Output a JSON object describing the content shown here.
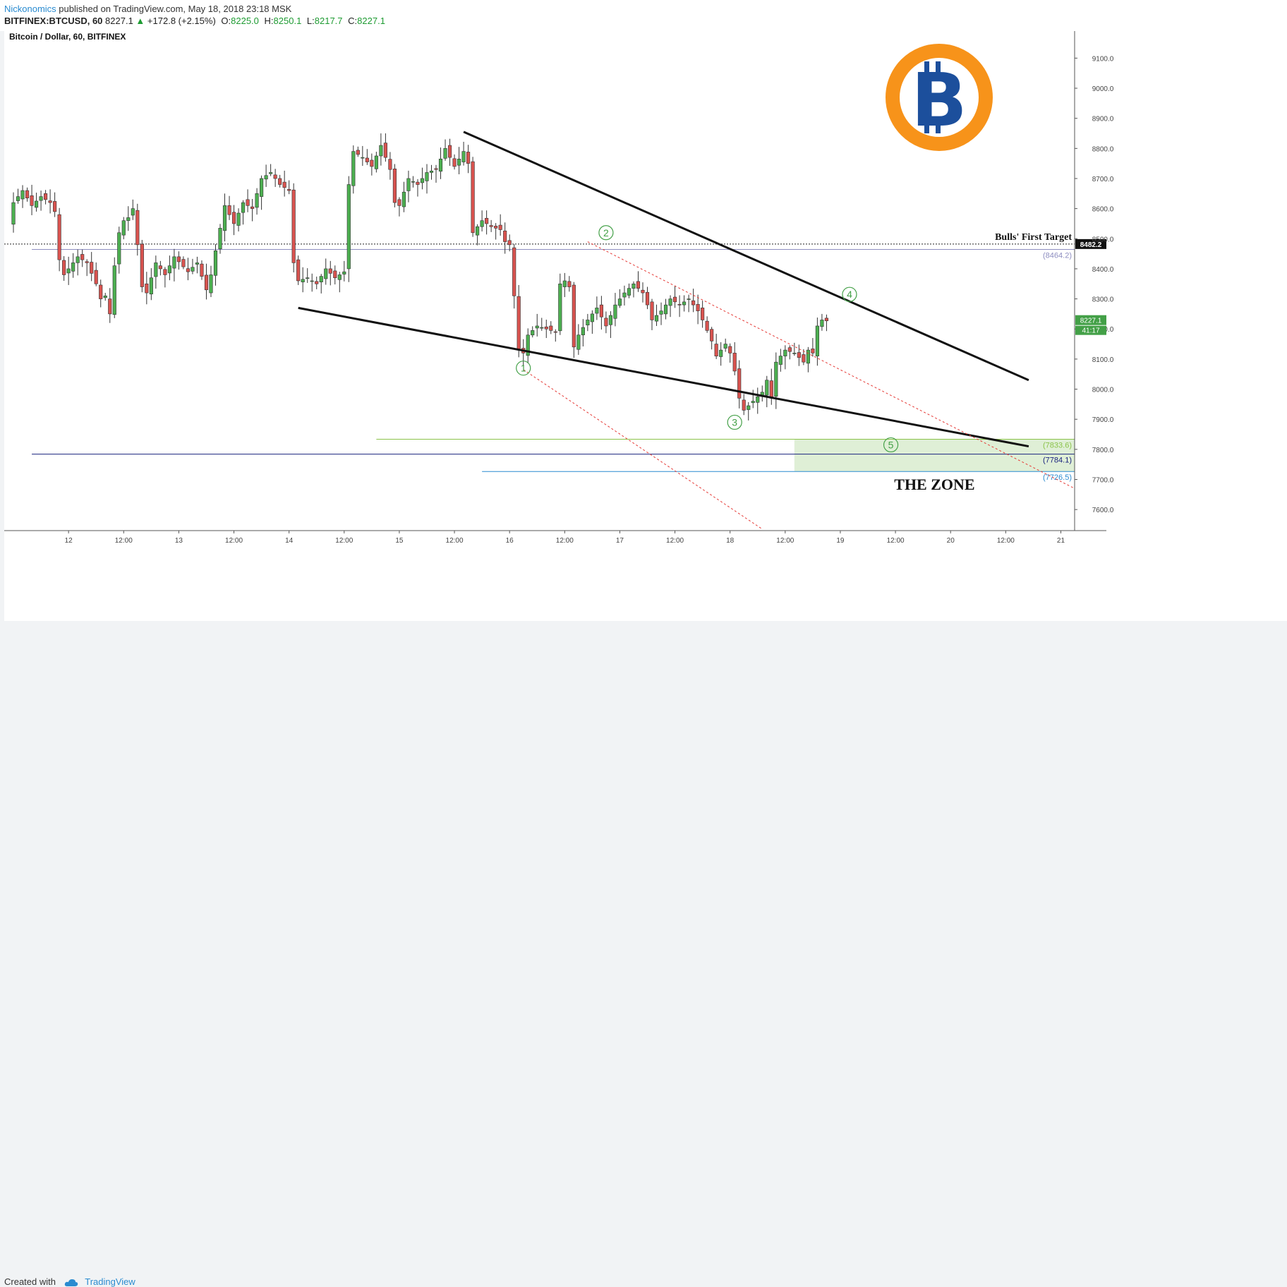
{
  "header": {
    "author": "Nickonomics",
    "published": " published on TradingView.com, May 18, 2018 23:18 MSK",
    "symbol": "BITFINEX:BTCUSD, 60",
    "last": "8227.1",
    "change": "+172.8 (+2.15%)",
    "o_label": "O:",
    "o_val": "8225.0",
    "h_label": "H:",
    "h_val": "8250.1",
    "l_label": "L:",
    "l_val": "8217.7",
    "c_label": "C:",
    "c_val": "8227.1"
  },
  "footer": {
    "created": "Created with",
    "brand": "TradingView"
  },
  "colors": {
    "up": "#4caf50",
    "down": "#d9534f",
    "accent": "#2a8bd0",
    "bitcoin_orange": "#f7931a",
    "bitcoin_blue": "#1c4f9c",
    "zone": "#d9eccf"
  },
  "chart_data": {
    "type": "candlestick",
    "title": "Bitcoin / Dollar, 60, BITFINEX",
    "ylim": [
      7530,
      9190
    ],
    "y_ticks": [
      "9100.0",
      "9000.0",
      "8900.0",
      "8800.0",
      "8700.0",
      "8600.0",
      "8500.0",
      "8400.0",
      "8300.0",
      "8200.0",
      "8100.0",
      "8000.0",
      "7900.0",
      "7800.0",
      "7700.0",
      "7600.0"
    ],
    "y_tick_values": [
      9100,
      9000,
      8900,
      8800,
      8700,
      8600,
      8500,
      8400,
      8300,
      8200,
      8100,
      8000,
      7900,
      7800,
      7700,
      7600
    ],
    "x_range_hours": [
      -14,
      219
    ],
    "x_ticks": [
      {
        "label": "12",
        "h": 0
      },
      {
        "label": "12:00",
        "h": 12
      },
      {
        "label": "13",
        "h": 24
      },
      {
        "label": "12:00",
        "h": 36
      },
      {
        "label": "14",
        "h": 48
      },
      {
        "label": "12:00",
        "h": 60
      },
      {
        "label": "15",
        "h": 72
      },
      {
        "label": "12:00",
        "h": 84
      },
      {
        "label": "16",
        "h": 96
      },
      {
        "label": "12:00",
        "h": 108
      },
      {
        "label": "17",
        "h": 120
      },
      {
        "label": "12:00",
        "h": 132
      },
      {
        "label": "18",
        "h": 144
      },
      {
        "label": "12:00",
        "h": 156
      },
      {
        "label": "19",
        "h": 168
      },
      {
        "label": "12:00",
        "h": 180
      },
      {
        "label": "20",
        "h": 192
      },
      {
        "label": "12:00",
        "h": 204
      },
      {
        "label": "21",
        "h": 216
      }
    ],
    "price_path": [
      [
        -13,
        8550
      ],
      [
        -12,
        8620
      ],
      [
        -10,
        8660
      ],
      [
        -8,
        8610
      ],
      [
        -6,
        8640
      ],
      [
        -4,
        8620
      ],
      [
        -3,
        8590
      ],
      [
        -2,
        8430
      ],
      [
        -1,
        8380
      ],
      [
        0,
        8400
      ],
      [
        2,
        8440
      ],
      [
        4,
        8420
      ],
      [
        6,
        8350
      ],
      [
        7,
        8300
      ],
      [
        8,
        8310
      ],
      [
        9,
        8250
      ],
      [
        10,
        8410
      ],
      [
        11,
        8520
      ],
      [
        12,
        8560
      ],
      [
        13,
        8570
      ],
      [
        14,
        8600
      ],
      [
        15,
        8480
      ],
      [
        16,
        8340
      ],
      [
        17,
        8320
      ],
      [
        19,
        8420
      ],
      [
        21,
        8380
      ],
      [
        23,
        8440
      ],
      [
        26,
        8390
      ],
      [
        28,
        8420
      ],
      [
        30,
        8330
      ],
      [
        31,
        8380
      ],
      [
        32,
        8460
      ],
      [
        34,
        8610
      ],
      [
        36,
        8550
      ],
      [
        38,
        8620
      ],
      [
        40,
        8600
      ],
      [
        42,
        8700
      ],
      [
        44,
        8720
      ],
      [
        46,
        8680
      ],
      [
        48,
        8660
      ],
      [
        49,
        8420
      ],
      [
        50,
        8360
      ],
      [
        52,
        8370
      ],
      [
        54,
        8350
      ],
      [
        56,
        8400
      ],
      [
        58,
        8370
      ],
      [
        60,
        8390
      ],
      [
        61,
        8680
      ],
      [
        62,
        8790
      ],
      [
        64,
        8770
      ],
      [
        66,
        8740
      ],
      [
        68,
        8810
      ],
      [
        70,
        8730
      ],
      [
        71,
        8620
      ],
      [
        72,
        8610
      ],
      [
        74,
        8700
      ],
      [
        76,
        8680
      ],
      [
        78,
        8720
      ],
      [
        80,
        8730
      ],
      [
        82,
        8800
      ],
      [
        84,
        8740
      ],
      [
        86,
        8790
      ],
      [
        87,
        8750
      ],
      [
        88,
        8520
      ],
      [
        90,
        8560
      ],
      [
        92,
        8540
      ],
      [
        94,
        8530
      ],
      [
        95,
        8490
      ],
      [
        96,
        8480
      ],
      [
        97,
        8310
      ],
      [
        98,
        8130
      ],
      [
        99,
        8120
      ],
      [
        100,
        8180
      ],
      [
        102,
        8210
      ],
      [
        104,
        8200
      ],
      [
        106,
        8190
      ],
      [
        107,
        8350
      ],
      [
        108,
        8360
      ],
      [
        109,
        8340
      ],
      [
        110,
        8140
      ],
      [
        111,
        8180
      ],
      [
        113,
        8230
      ],
      [
        115,
        8270
      ],
      [
        117,
        8210
      ],
      [
        119,
        8280
      ],
      [
        121,
        8320
      ],
      [
        123,
        8350
      ],
      [
        125,
        8320
      ],
      [
        126,
        8280
      ],
      [
        127,
        8230
      ],
      [
        129,
        8260
      ],
      [
        131,
        8300
      ],
      [
        133,
        8280
      ],
      [
        135,
        8300
      ],
      [
        137,
        8260
      ],
      [
        138,
        8230
      ],
      [
        140,
        8160
      ],
      [
        141,
        8110
      ],
      [
        143,
        8150
      ],
      [
        144,
        8120
      ],
      [
        145,
        8060
      ],
      [
        146,
        7970
      ],
      [
        147,
        7930
      ],
      [
        149,
        7960
      ],
      [
        151,
        7990
      ],
      [
        152,
        8030
      ],
      [
        153,
        7970
      ],
      [
        154,
        8090
      ],
      [
        156,
        8130
      ],
      [
        158,
        8120
      ],
      [
        160,
        8090
      ],
      [
        161,
        8130
      ],
      [
        162,
        8120
      ],
      [
        163,
        8210
      ],
      [
        164,
        8230
      ],
      [
        165,
        8227
      ]
    ],
    "trendlines": [
      {
        "name": "upper",
        "from": [
          86,
          8855
        ],
        "to": [
          209,
          8030
        ],
        "color": "#111111"
      },
      {
        "name": "lower",
        "from": [
          50,
          8270
        ],
        "to": [
          209,
          7810
        ],
        "color": "#111111"
      }
    ],
    "channel_lines": [
      {
        "from": [
          113,
          8490
        ],
        "to": [
          219,
          7670
        ],
        "color": "#e53935"
      },
      {
        "from": [
          99,
          8065
        ],
        "to": [
          151,
          7535
        ],
        "color": "#e53935"
      }
    ],
    "hlines": [
      {
        "price": 8482.2,
        "label": "Bulls' First Target",
        "axis_label": "8482.2",
        "style": "dotted",
        "color": "#222222",
        "from_h": -14
      },
      {
        "price": 8464.2,
        "label": "(8464.2)",
        "style": "solid",
        "color": "#8e8ec0",
        "from_h": -8
      },
      {
        "price": 7833.6,
        "label": "(7833.6)",
        "style": "solid",
        "color": "#8bc34a",
        "from_h": 67
      },
      {
        "price": 7784.1,
        "label": "(7784.1)",
        "style": "solid",
        "color": "#1a237e",
        "from_h": -8
      },
      {
        "price": 7726.5,
        "label": "(7726.5)",
        "style": "solid",
        "color": "#2a8bd0",
        "from_h": 90
      }
    ],
    "zone": {
      "label": "THE ZONE",
      "from_h": 158,
      "to_h": 219,
      "top": 7833.6,
      "bottom": 7726.5
    },
    "wave_labels": [
      {
        "label": "1",
        "h": 99,
        "price": 8070
      },
      {
        "label": "2",
        "h": 117,
        "price": 8520
      },
      {
        "label": "3",
        "h": 145,
        "price": 7890
      },
      {
        "label": "4",
        "h": 170,
        "price": 8315
      },
      {
        "label": "5",
        "h": 179,
        "price": 7815
      }
    ],
    "last_price_label": "8227.1",
    "countdown_label": "41:17"
  }
}
